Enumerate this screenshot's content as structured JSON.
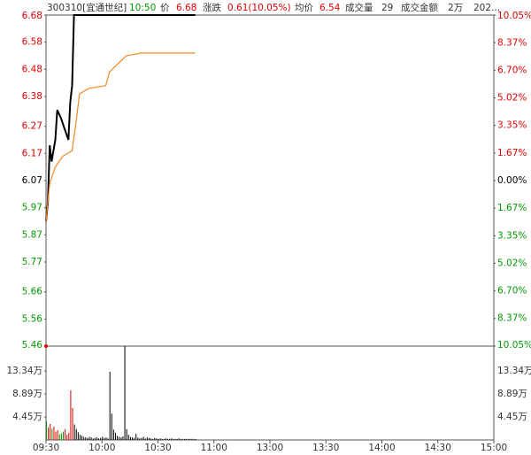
{
  "header": {
    "code": "300310[宜通世纪]",
    "time": "10:50",
    "price_label": "价",
    "price": "6.68",
    "change_label": "涨跌",
    "change": "0.61(10.05%)",
    "avg_label": "均价",
    "avg": "6.54",
    "volume_label": "成交量",
    "volume": "29",
    "amount_label": "成交金额",
    "amount": "2万",
    "date": "202..."
  },
  "chart_data": [
    {
      "type": "line",
      "xlim": [
        0,
        240
      ],
      "xticks": [
        {
          "value": 0,
          "label": "09:30"
        },
        {
          "value": 30,
          "label": "10:00"
        },
        {
          "value": 60,
          "label": "10:30"
        },
        {
          "value": 90,
          "label": "11:00"
        },
        {
          "value": 120,
          "label": "13:00"
        },
        {
          "value": 150,
          "label": "13:30"
        },
        {
          "value": 180,
          "label": "14:00"
        },
        {
          "value": 210,
          "label": "14:30"
        },
        {
          "value": 240,
          "label": "15:00"
        }
      ],
      "ylim": [
        5.46,
        6.68
      ],
      "yticks": [
        6.68,
        6.58,
        6.48,
        6.38,
        6.27,
        6.17,
        6.07,
        5.97,
        5.87,
        5.77,
        5.66,
        5.56,
        5.46
      ],
      "y2lim": [
        -10.05,
        10.05
      ],
      "y2ticks": [
        {
          "value": 10.05,
          "label": "10.05%"
        },
        {
          "value": 8.37,
          "label": "8.37%"
        },
        {
          "value": 6.7,
          "label": "6.70%"
        },
        {
          "value": 5.02,
          "label": "5.02%"
        },
        {
          "value": 3.35,
          "label": "3.35%"
        },
        {
          "value": 1.67,
          "label": "1.67%"
        },
        {
          "value": 0,
          "label": "0.00%"
        },
        {
          "value": -1.67,
          "label": "1.67%"
        },
        {
          "value": -3.35,
          "label": "3.35%"
        },
        {
          "value": -5.02,
          "label": "5.02%"
        },
        {
          "value": -6.7,
          "label": "6.70%"
        },
        {
          "value": -8.37,
          "label": "8.37%"
        },
        {
          "value": -10.05,
          "label": "10.05%"
        }
      ],
      "up_color": "#e00000",
      "down_color": "#009900",
      "flat_color": "#000000",
      "series": [
        {
          "x": [
            0,
            1,
            2,
            3,
            4,
            5,
            6,
            8,
            10,
            12,
            13,
            14,
            15,
            80
          ],
          "values": [
            5.92,
            5.99,
            6.2,
            6.14,
            6.18,
            6.22,
            6.33,
            6.3,
            6.26,
            6.22,
            6.36,
            6.42,
            6.68,
            6.68
          ],
          "color": "#000000"
        },
        {
          "x": [
            0,
            2,
            5,
            9,
            14,
            16,
            18,
            23,
            32,
            34,
            37,
            40,
            43,
            51,
            80
          ],
          "values": [
            5.92,
            6.06,
            6.12,
            6.16,
            6.18,
            6.28,
            6.39,
            6.41,
            6.42,
            6.47,
            6.49,
            6.51,
            6.53,
            6.54,
            6.54
          ],
          "color": "#f08a24"
        }
      ]
    },
    {
      "type": "bar",
      "xlim": [
        0,
        240
      ],
      "ylim": [
        0,
        18.17
      ],
      "yticks": [
        {
          "value": 13.34,
          "label": "13.34万"
        },
        {
          "value": 8.89,
          "label": "8.89万"
        },
        {
          "value": 4.45,
          "label": "4.45万"
        }
      ],
      "values": [
        3.6,
        2.4,
        3.1,
        2.2,
        2.6,
        1.6,
        1.9,
        1.1,
        1.3,
        1.6,
        2.1,
        1.0,
        1.4,
        9.6,
        6.2,
        3.0,
        2.1,
        1.5,
        1.0,
        0.8,
        0.6,
        0.5,
        0.4,
        0.6,
        0.5,
        0.3,
        0.4,
        0.5,
        0.3,
        0.4,
        0.6,
        0.4,
        0.5,
        0.3,
        13.2,
        5.1,
        2.0,
        1.4,
        0.8,
        0.6,
        0.5,
        0.7,
        18.2,
        2.1,
        1.0,
        0.6,
        0.5,
        0.4,
        1.2,
        0.5,
        0.3,
        0.4,
        0.6,
        0.3,
        0.5,
        0.4,
        0.3,
        0.2,
        0.4,
        0.3,
        0.2,
        0.3,
        0.2,
        0.2,
        0.3,
        0.2,
        0.2,
        0.3,
        0.2,
        0.2,
        0.2,
        0.3,
        0.2,
        0.2,
        0.2,
        0.2,
        0.2,
        0.2,
        0.2,
        0.2,
        0.2
      ],
      "colors": [
        "#009900",
        "#e00000",
        "#e00000",
        "#009900",
        "#e00000",
        "#e00000",
        "#e00000",
        "#009900",
        "#009900",
        "#009900",
        "#e00000",
        "#e00000",
        "#e00000",
        "#e00000",
        "#e00000",
        "#000000",
        "#000000",
        "#000000",
        "#000000",
        "#000000",
        "#000000",
        "#000000",
        "#000000",
        "#000000",
        "#000000",
        "#000000",
        "#000000",
        "#000000",
        "#000000",
        "#000000",
        "#000000",
        "#000000",
        "#000000",
        "#000000",
        "#000000",
        "#000000",
        "#000000",
        "#000000",
        "#000000",
        "#000000",
        "#000000",
        "#000000",
        "#000000",
        "#000000",
        "#000000",
        "#000000",
        "#000000",
        "#000000",
        "#000000",
        "#000000",
        "#000000",
        "#000000",
        "#000000",
        "#000000",
        "#000000",
        "#000000",
        "#000000",
        "#000000",
        "#000000",
        "#000000",
        "#000000",
        "#000000",
        "#000000",
        "#000000",
        "#000000",
        "#000000",
        "#000000",
        "#000000",
        "#000000",
        "#000000",
        "#000000",
        "#000000",
        "#000000",
        "#000000",
        "#000000",
        "#000000",
        "#000000",
        "#000000",
        "#000000",
        "#000000",
        "#000000"
      ]
    }
  ]
}
